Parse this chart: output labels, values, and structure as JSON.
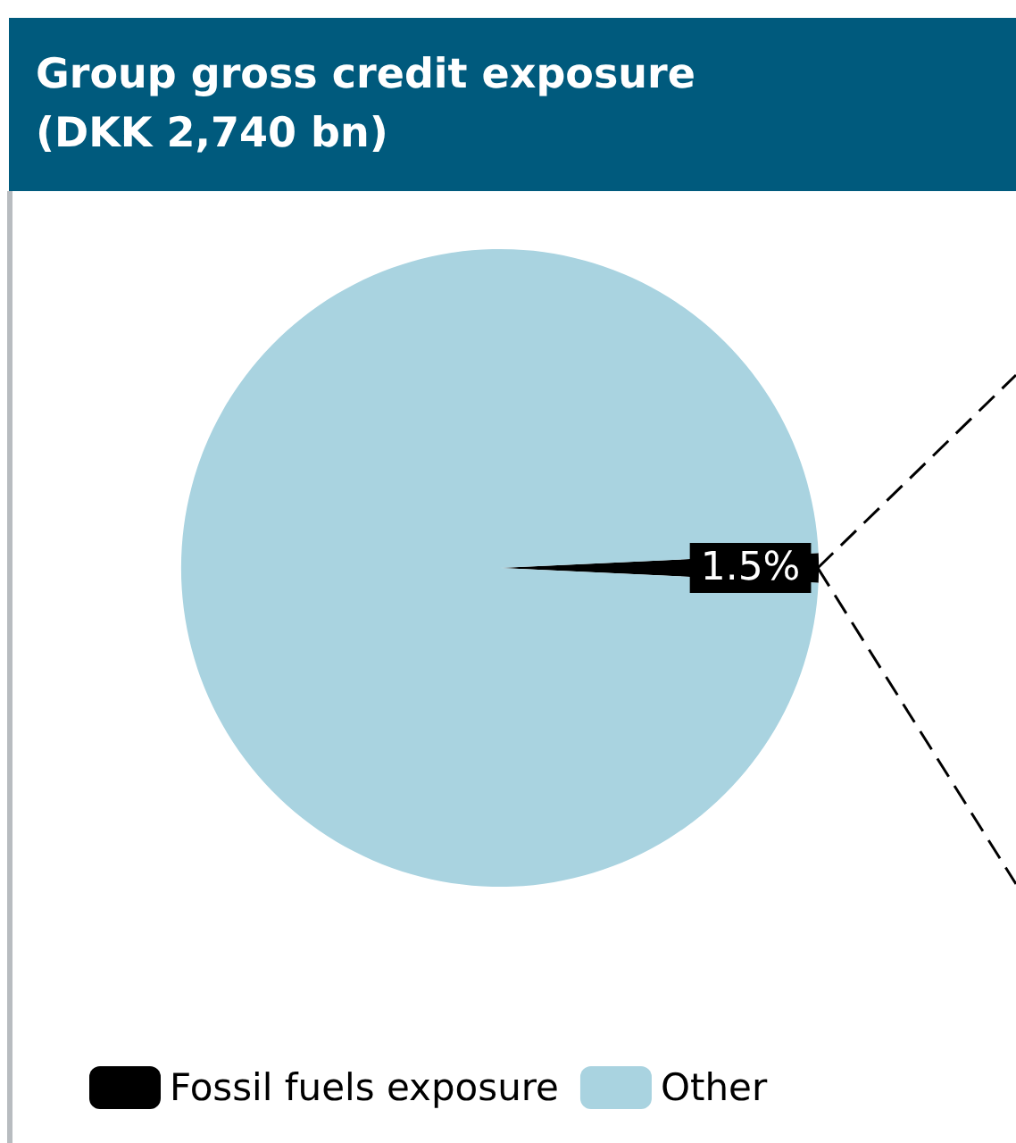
{
  "chart_data": {
    "type": "pie",
    "title": "Group gross credit exposure\n(DKK 2,740 bn)",
    "categories": [
      "Fossil fuels exposure",
      "Other"
    ],
    "values": [
      1.5,
      98.5
    ],
    "colors": [
      "#000000",
      "#a9d3e0"
    ],
    "value_labels": [
      "1.5%",
      null
    ],
    "legend": "bottom left"
  }
}
